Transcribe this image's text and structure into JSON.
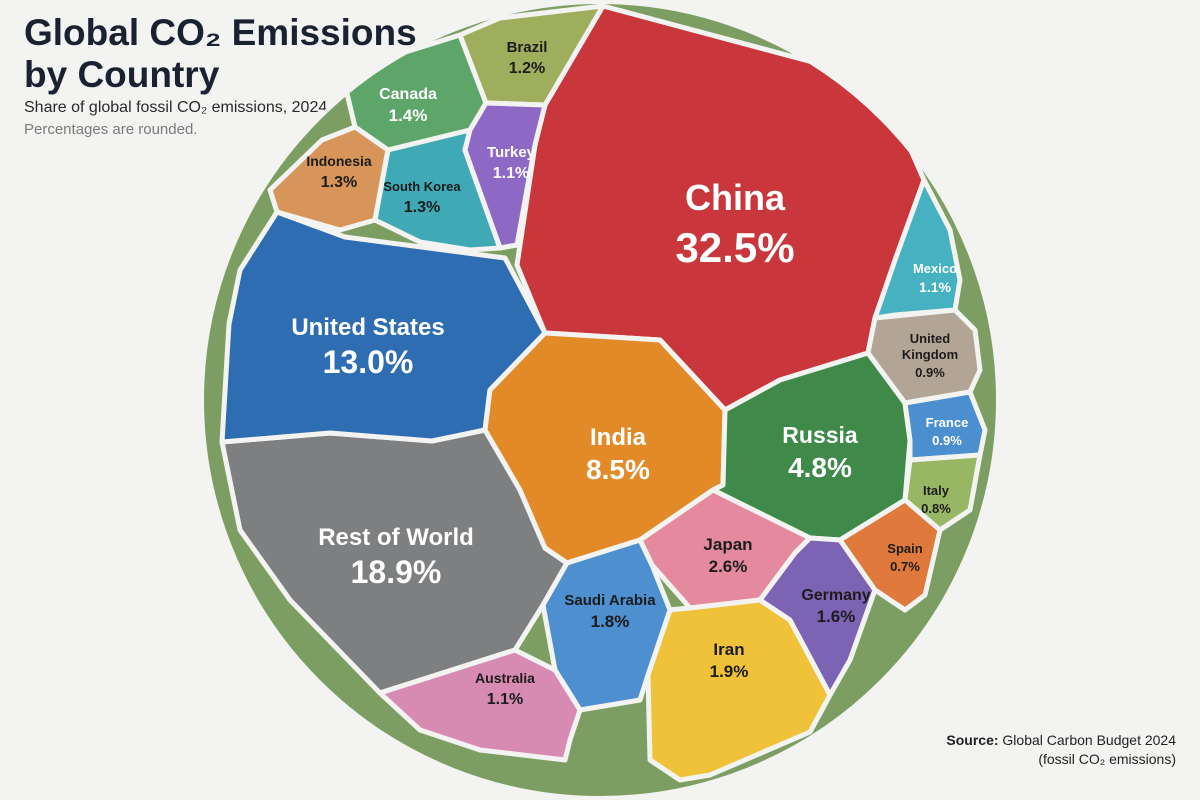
{
  "header": {
    "title_line1": "Global CO₂ Emissions",
    "title_line2": "by Country",
    "subtitle": "Share of global fossil CO₂ emissions, 2024",
    "note": "Percentages are rounded."
  },
  "source": {
    "label": "Source:",
    "text": "Global Carbon Budget 2024",
    "detail": "(fossil CO₂ emissions)"
  },
  "chart_data": {
    "type": "voronoi-treemap",
    "unit": "%",
    "series": [
      {
        "name": "China",
        "value": 32.5,
        "label": "32.5%",
        "color": "#c9363b"
      },
      {
        "name": "Rest of World",
        "value": 18.9,
        "label": "18.9%",
        "color": "#7d7f80"
      },
      {
        "name": "United States",
        "value": 13.0,
        "label": "13.0%",
        "color": "#2f6db3"
      },
      {
        "name": "India",
        "value": 8.5,
        "label": "8.5%",
        "color": "#e28a27"
      },
      {
        "name": "Russia",
        "value": 4.8,
        "label": "4.8%",
        "color": "#3f8a49"
      },
      {
        "name": "Japan",
        "value": 2.6,
        "label": "2.6%",
        "color": "#e48a9c"
      },
      {
        "name": "Iran",
        "value": 1.9,
        "label": "1.9%",
        "color": "#efc23a"
      },
      {
        "name": "Saudi Arabia",
        "value": 1.8,
        "label": "1.8%",
        "color": "#4e8fd0"
      },
      {
        "name": "Germany",
        "value": 1.6,
        "label": "1.6%",
        "color": "#7d63b4"
      },
      {
        "name": "Canada",
        "value": 1.4,
        "label": "1.4%",
        "color": "#5ea56a"
      },
      {
        "name": "Indonesia",
        "value": 1.3,
        "label": "1.3%",
        "color": "#d8955a"
      },
      {
        "name": "South Korea",
        "value": 1.3,
        "label": "1.3%",
        "color": "#3faab6"
      },
      {
        "name": "Brazil",
        "value": 1.2,
        "label": "1.2%",
        "color": "#9eae5d"
      },
      {
        "name": "Turkey",
        "value": 1.1,
        "label": "1.1%",
        "color": "#8d68c4"
      },
      {
        "name": "Mexico",
        "value": 1.1,
        "label": "1.1%",
        "color": "#45b1c1"
      },
      {
        "name": "Australia",
        "value": 1.1,
        "label": "1.1%",
        "color": "#d78bb3"
      },
      {
        "name": "United Kingdom",
        "value": 0.9,
        "label": "0.9%",
        "color": "#b2a595"
      },
      {
        "name": "France",
        "value": 0.9,
        "label": "0.9%",
        "color": "#4c8fd0"
      },
      {
        "name": "Italy",
        "value": 0.8,
        "label": "0.8%",
        "color": "#98b764"
      },
      {
        "name": "Spain",
        "value": 0.7,
        "label": "0.7%",
        "color": "#e0793c"
      }
    ]
  }
}
